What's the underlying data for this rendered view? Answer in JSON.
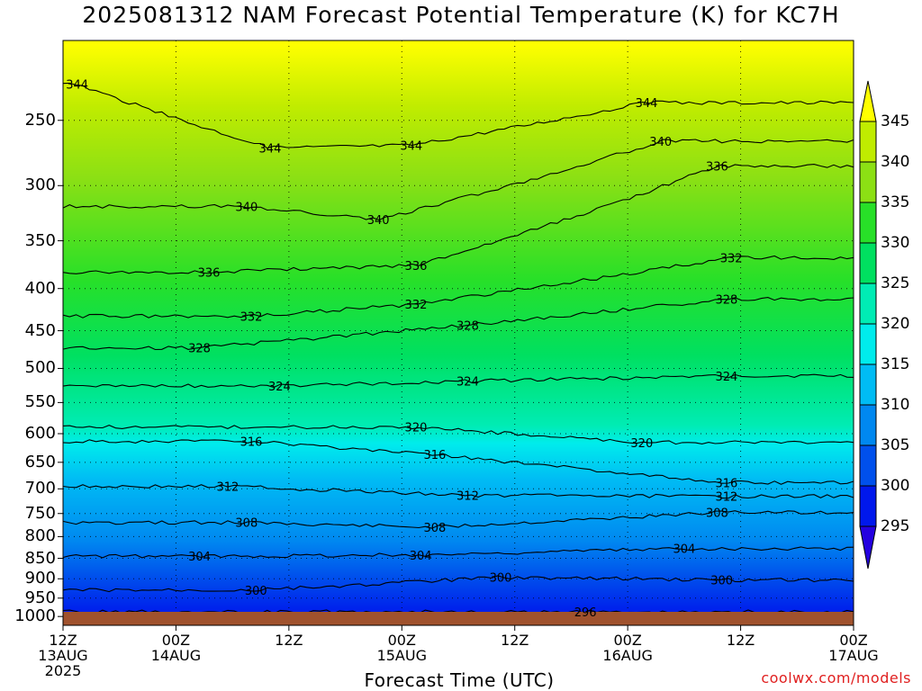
{
  "page": {
    "title": "2025081312 NAM Forecast Potential Temperature (K) for KC7H",
    "credit": "coolwx.com/models"
  },
  "chart_data": {
    "type": "heatmap",
    "title": "2025081312 NAM Forecast Potential Temperature (K) for KC7H",
    "xlabel": "Forecast Time (UTC)",
    "ylabel": "",
    "x_ticks": [
      {
        "hour": 0,
        "lines": [
          "12Z",
          "13AUG",
          "2025"
        ]
      },
      {
        "hour": 12,
        "lines": [
          "00Z",
          "14AUG"
        ]
      },
      {
        "hour": 24,
        "lines": [
          "12Z"
        ]
      },
      {
        "hour": 36,
        "lines": [
          "00Z",
          "15AUG"
        ]
      },
      {
        "hour": 48,
        "lines": [
          "12Z"
        ]
      },
      {
        "hour": 60,
        "lines": [
          "00Z",
          "16AUG"
        ]
      },
      {
        "hour": 72,
        "lines": [
          "12Z"
        ]
      },
      {
        "hour": 84,
        "lines": [
          "00Z",
          "17AUG"
        ]
      }
    ],
    "xlim": [
      0,
      84
    ],
    "y_axis": "pressure (hPa), log scale, inverted",
    "y_ticks": [
      250,
      300,
      350,
      400,
      450,
      500,
      550,
      600,
      650,
      700,
      750,
      800,
      850,
      900,
      950,
      1000
    ],
    "ylim": [
      200,
      1025
    ],
    "colorbar": {
      "labels": [
        345,
        340,
        335,
        330,
        325,
        320,
        315,
        310,
        305,
        300,
        295
      ],
      "levels": [
        295,
        300,
        305,
        310,
        315,
        320,
        325,
        330,
        335,
        340,
        345
      ],
      "colors": [
        "#2400e0",
        "#0018ec",
        "#0050ec",
        "#0088f0",
        "#00bcf4",
        "#00ecec",
        "#00ecb4",
        "#00e060",
        "#28e028",
        "#8ce014",
        "#c0ec00",
        "#ffff00"
      ]
    },
    "contour_interval": 4,
    "contour_labels": [
      {
        "value": 344,
        "hour": 1.5,
        "p": 226
      },
      {
        "value": 344,
        "hour": 22,
        "p": 270
      },
      {
        "value": 344,
        "hour": 37,
        "p": 268
      },
      {
        "value": 344,
        "hour": 62,
        "p": 238
      },
      {
        "value": 340,
        "hour": 19.5,
        "p": 318
      },
      {
        "value": 340,
        "hour": 33.5,
        "p": 330
      },
      {
        "value": 340,
        "hour": 63.5,
        "p": 265
      },
      {
        "value": 336,
        "hour": 15.5,
        "p": 382
      },
      {
        "value": 336,
        "hour": 37.5,
        "p": 375
      },
      {
        "value": 336,
        "hour": 69.5,
        "p": 284
      },
      {
        "value": 332,
        "hour": 20,
        "p": 432
      },
      {
        "value": 332,
        "hour": 37.5,
        "p": 418
      },
      {
        "value": 332,
        "hour": 71,
        "p": 367
      },
      {
        "value": 328,
        "hour": 14.5,
        "p": 472
      },
      {
        "value": 328,
        "hour": 43,
        "p": 443
      },
      {
        "value": 328,
        "hour": 70.5,
        "p": 412
      },
      {
        "value": 324,
        "hour": 23,
        "p": 525
      },
      {
        "value": 324,
        "hour": 43,
        "p": 518
      },
      {
        "value": 324,
        "hour": 70.5,
        "p": 511
      },
      {
        "value": 320,
        "hour": 37.5,
        "p": 589
      },
      {
        "value": 320,
        "hour": 61.5,
        "p": 615
      },
      {
        "value": 316,
        "hour": 20,
        "p": 613
      },
      {
        "value": 316,
        "hour": 39.5,
        "p": 636
      },
      {
        "value": 316,
        "hour": 70.5,
        "p": 688
      },
      {
        "value": 312,
        "hour": 17.5,
        "p": 695
      },
      {
        "value": 312,
        "hour": 43,
        "p": 713
      },
      {
        "value": 312,
        "hour": 70.5,
        "p": 715
      },
      {
        "value": 308,
        "hour": 19.5,
        "p": 769
      },
      {
        "value": 308,
        "hour": 39.5,
        "p": 779
      },
      {
        "value": 308,
        "hour": 69.5,
        "p": 748
      },
      {
        "value": 304,
        "hour": 14.5,
        "p": 845
      },
      {
        "value": 304,
        "hour": 38,
        "p": 842
      },
      {
        "value": 304,
        "hour": 66,
        "p": 827
      },
      {
        "value": 300,
        "hour": 20.5,
        "p": 929
      },
      {
        "value": 300,
        "hour": 46.5,
        "p": 896
      },
      {
        "value": 300,
        "hour": 70,
        "p": 903
      },
      {
        "value": 296,
        "hour": 55.5,
        "p": 987
      }
    ],
    "ground_color": "#a0522d",
    "grid": true
  }
}
